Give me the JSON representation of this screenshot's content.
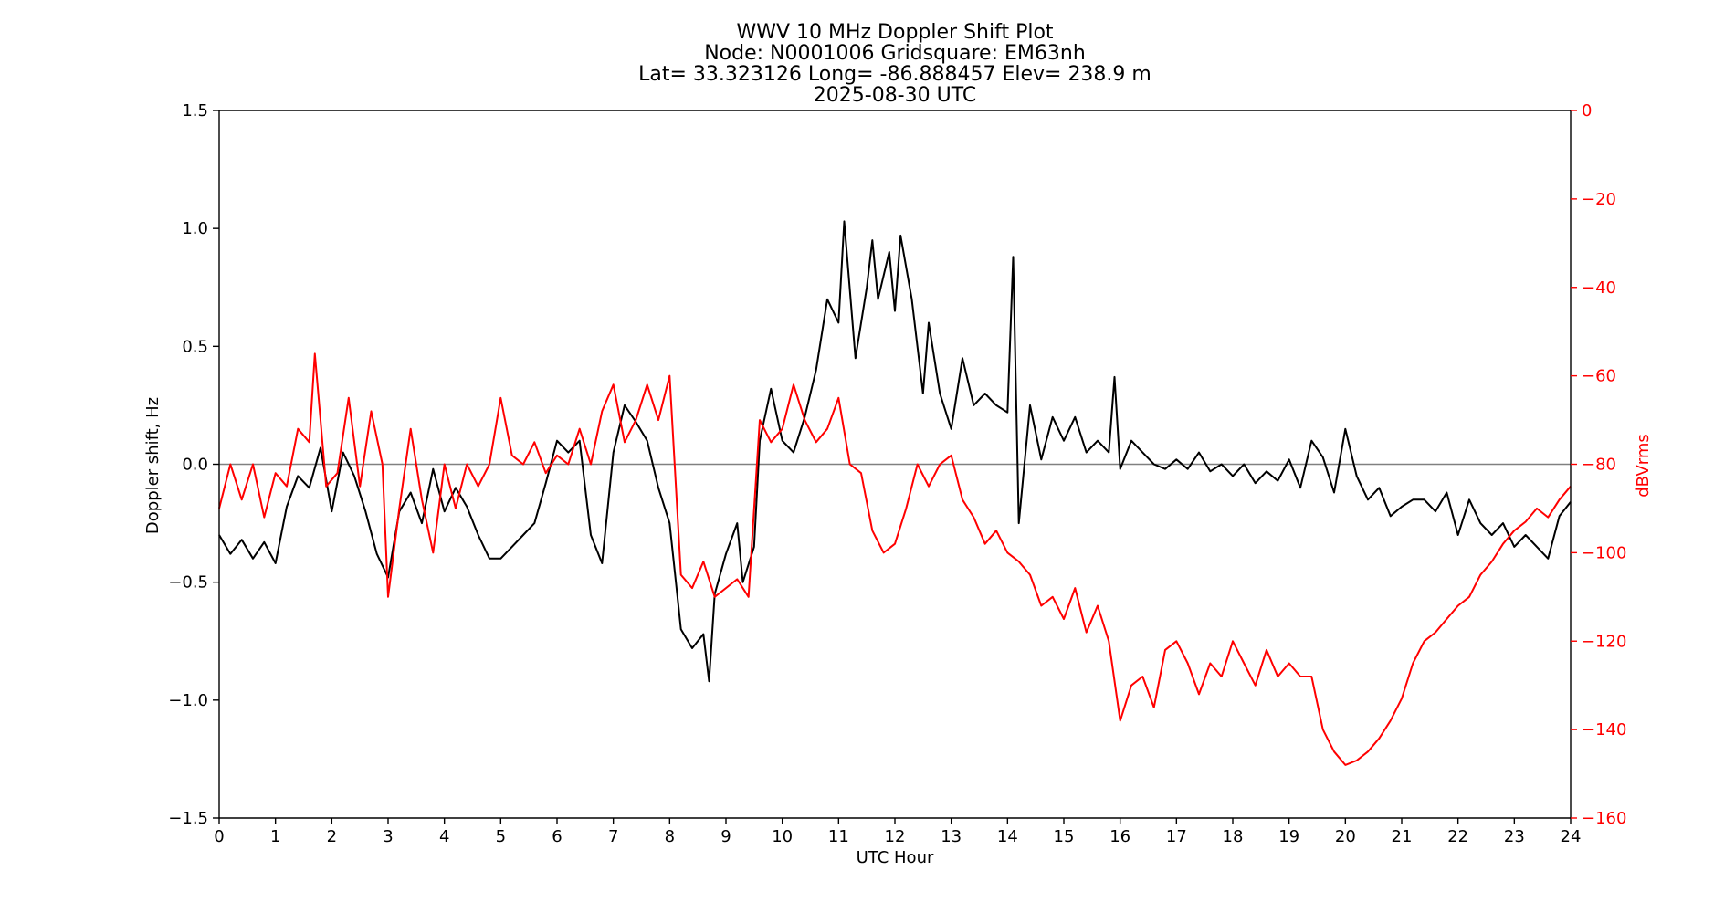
{
  "chart_data": {
    "type": "line",
    "title_lines": [
      "WWV 10 MHz Doppler Shift Plot",
      "Node:  N0001006     Gridsquare:  EM63nh",
      "Lat= 33.323126    Long= -86.888457    Elev= 238.9 m",
      "2025-08-30  UTC"
    ],
    "xlabel": "UTC Hour",
    "ylabel_left": "Doppler shift, Hz",
    "ylabel_right": "dBVrms",
    "xlim": [
      0,
      24
    ],
    "ylim_left": [
      -1.5,
      1.5
    ],
    "ylim_right": [
      -160,
      0
    ],
    "x_ticks": [
      "0",
      "1",
      "2",
      "3",
      "4",
      "5",
      "6",
      "7",
      "8",
      "9",
      "10",
      "11",
      "12",
      "13",
      "14",
      "15",
      "16",
      "17",
      "18",
      "19",
      "20",
      "21",
      "22",
      "23",
      "24"
    ],
    "y_left_ticks": [
      "1.5",
      "1.0",
      "0.5",
      "0.0",
      "−0.5",
      "−1.0",
      "−1.5"
    ],
    "y_right_ticks": [
      "0",
      "−20",
      "−40",
      "−60",
      "−80",
      "−100",
      "−120",
      "−140",
      "−160"
    ],
    "zero_line": 0.0,
    "colors": {
      "doppler": "#000000",
      "power": "#ff0000",
      "zero_line": "#808080",
      "axes": "#000000",
      "right_axis": "#ff0000"
    },
    "series": [
      {
        "axis": "left",
        "points": [
          [
            0.0,
            -0.3
          ],
          [
            0.2,
            -0.38
          ],
          [
            0.4,
            -0.32
          ],
          [
            0.6,
            -0.4
          ],
          [
            0.8,
            -0.33
          ],
          [
            1.0,
            -0.42
          ],
          [
            1.2,
            -0.18
          ],
          [
            1.4,
            -0.05
          ],
          [
            1.6,
            -0.1
          ],
          [
            1.8,
            0.07
          ],
          [
            2.0,
            -0.2
          ],
          [
            2.2,
            0.05
          ],
          [
            2.4,
            -0.05
          ],
          [
            2.6,
            -0.2
          ],
          [
            2.8,
            -0.38
          ],
          [
            3.0,
            -0.48
          ],
          [
            3.2,
            -0.2
          ],
          [
            3.4,
            -0.12
          ],
          [
            3.6,
            -0.25
          ],
          [
            3.8,
            -0.02
          ],
          [
            4.0,
            -0.2
          ],
          [
            4.2,
            -0.1
          ],
          [
            4.4,
            -0.18
          ],
          [
            4.6,
            -0.3
          ],
          [
            4.8,
            -0.4
          ],
          [
            5.0,
            -0.4
          ],
          [
            5.2,
            -0.35
          ],
          [
            5.4,
            -0.3
          ],
          [
            5.6,
            -0.25
          ],
          [
            5.8,
            -0.08
          ],
          [
            6.0,
            0.1
          ],
          [
            6.2,
            0.05
          ],
          [
            6.4,
            0.1
          ],
          [
            6.6,
            -0.3
          ],
          [
            6.8,
            -0.42
          ],
          [
            7.0,
            0.05
          ],
          [
            7.2,
            0.25
          ],
          [
            7.4,
            0.18
          ],
          [
            7.6,
            0.1
          ],
          [
            7.8,
            -0.1
          ],
          [
            8.0,
            -0.25
          ],
          [
            8.2,
            -0.7
          ],
          [
            8.4,
            -0.78
          ],
          [
            8.6,
            -0.72
          ],
          [
            8.7,
            -0.92
          ],
          [
            8.8,
            -0.55
          ],
          [
            9.0,
            -0.38
          ],
          [
            9.2,
            -0.25
          ],
          [
            9.3,
            -0.5
          ],
          [
            9.5,
            -0.35
          ],
          [
            9.6,
            0.1
          ],
          [
            9.8,
            0.32
          ],
          [
            10.0,
            0.1
          ],
          [
            10.2,
            0.05
          ],
          [
            10.4,
            0.2
          ],
          [
            10.6,
            0.4
          ],
          [
            10.8,
            0.7
          ],
          [
            11.0,
            0.6
          ],
          [
            11.1,
            1.03
          ],
          [
            11.3,
            0.45
          ],
          [
            11.5,
            0.75
          ],
          [
            11.6,
            0.95
          ],
          [
            11.7,
            0.7
          ],
          [
            11.9,
            0.9
          ],
          [
            12.0,
            0.65
          ],
          [
            12.1,
            0.97
          ],
          [
            12.3,
            0.7
          ],
          [
            12.5,
            0.3
          ],
          [
            12.6,
            0.6
          ],
          [
            12.8,
            0.3
          ],
          [
            13.0,
            0.15
          ],
          [
            13.2,
            0.45
          ],
          [
            13.4,
            0.25
          ],
          [
            13.6,
            0.3
          ],
          [
            13.8,
            0.25
          ],
          [
            14.0,
            0.22
          ],
          [
            14.1,
            0.88
          ],
          [
            14.2,
            -0.25
          ],
          [
            14.4,
            0.25
          ],
          [
            14.6,
            0.02
          ],
          [
            14.8,
            0.2
          ],
          [
            15.0,
            0.1
          ],
          [
            15.2,
            0.2
          ],
          [
            15.4,
            0.05
          ],
          [
            15.6,
            0.1
          ],
          [
            15.8,
            0.05
          ],
          [
            15.9,
            0.37
          ],
          [
            16.0,
            -0.02
          ],
          [
            16.2,
            0.1
          ],
          [
            16.4,
            0.05
          ],
          [
            16.6,
            0.0
          ],
          [
            16.8,
            -0.02
          ],
          [
            17.0,
            0.02
          ],
          [
            17.2,
            -0.02
          ],
          [
            17.4,
            0.05
          ],
          [
            17.6,
            -0.03
          ],
          [
            17.8,
            0.0
          ],
          [
            18.0,
            -0.05
          ],
          [
            18.2,
            0.0
          ],
          [
            18.4,
            -0.08
          ],
          [
            18.6,
            -0.03
          ],
          [
            18.8,
            -0.07
          ],
          [
            19.0,
            0.02
          ],
          [
            19.2,
            -0.1
          ],
          [
            19.4,
            0.1
          ],
          [
            19.6,
            0.03
          ],
          [
            19.8,
            -0.12
          ],
          [
            20.0,
            0.15
          ],
          [
            20.2,
            -0.05
          ],
          [
            20.4,
            -0.15
          ],
          [
            20.6,
            -0.1
          ],
          [
            20.8,
            -0.22
          ],
          [
            21.0,
            -0.18
          ],
          [
            21.2,
            -0.15
          ],
          [
            21.4,
            -0.15
          ],
          [
            21.6,
            -0.2
          ],
          [
            21.8,
            -0.12
          ],
          [
            22.0,
            -0.3
          ],
          [
            22.2,
            -0.15
          ],
          [
            22.4,
            -0.25
          ],
          [
            22.6,
            -0.3
          ],
          [
            22.8,
            -0.25
          ],
          [
            23.0,
            -0.35
          ],
          [
            23.2,
            -0.3
          ],
          [
            23.4,
            -0.35
          ],
          [
            23.6,
            -0.4
          ],
          [
            23.8,
            -0.22
          ],
          [
            24.0,
            -0.16
          ]
        ]
      },
      {
        "axis": "right",
        "points": [
          [
            0.0,
            -90
          ],
          [
            0.2,
            -80
          ],
          [
            0.4,
            -88
          ],
          [
            0.6,
            -80
          ],
          [
            0.8,
            -92
          ],
          [
            1.0,
            -82
          ],
          [
            1.2,
            -85
          ],
          [
            1.4,
            -72
          ],
          [
            1.6,
            -75
          ],
          [
            1.7,
            -55
          ],
          [
            1.9,
            -85
          ],
          [
            2.1,
            -82
          ],
          [
            2.3,
            -65
          ],
          [
            2.5,
            -85
          ],
          [
            2.7,
            -68
          ],
          [
            2.9,
            -80
          ],
          [
            3.0,
            -110
          ],
          [
            3.2,
            -90
          ],
          [
            3.4,
            -72
          ],
          [
            3.6,
            -88
          ],
          [
            3.8,
            -100
          ],
          [
            4.0,
            -80
          ],
          [
            4.2,
            -90
          ],
          [
            4.4,
            -80
          ],
          [
            4.6,
            -85
          ],
          [
            4.8,
            -80
          ],
          [
            5.0,
            -65
          ],
          [
            5.2,
            -78
          ],
          [
            5.4,
            -80
          ],
          [
            5.6,
            -75
          ],
          [
            5.8,
            -82
          ],
          [
            6.0,
            -78
          ],
          [
            6.2,
            -80
          ],
          [
            6.4,
            -72
          ],
          [
            6.6,
            -80
          ],
          [
            6.8,
            -68
          ],
          [
            7.0,
            -62
          ],
          [
            7.2,
            -75
          ],
          [
            7.4,
            -70
          ],
          [
            7.6,
            -62
          ],
          [
            7.8,
            -70
          ],
          [
            8.0,
            -60
          ],
          [
            8.2,
            -105
          ],
          [
            8.4,
            -108
          ],
          [
            8.6,
            -102
          ],
          [
            8.8,
            -110
          ],
          [
            9.0,
            -108
          ],
          [
            9.2,
            -106
          ],
          [
            9.4,
            -110
          ],
          [
            9.6,
            -70
          ],
          [
            9.8,
            -75
          ],
          [
            10.0,
            -72
          ],
          [
            10.2,
            -62
          ],
          [
            10.4,
            -70
          ],
          [
            10.6,
            -75
          ],
          [
            10.8,
            -72
          ],
          [
            11.0,
            -65
          ],
          [
            11.2,
            -80
          ],
          [
            11.4,
            -82
          ],
          [
            11.6,
            -95
          ],
          [
            11.8,
            -100
          ],
          [
            12.0,
            -98
          ],
          [
            12.2,
            -90
          ],
          [
            12.4,
            -80
          ],
          [
            12.6,
            -85
          ],
          [
            12.8,
            -80
          ],
          [
            13.0,
            -78
          ],
          [
            13.2,
            -88
          ],
          [
            13.4,
            -92
          ],
          [
            13.6,
            -98
          ],
          [
            13.8,
            -95
          ],
          [
            14.0,
            -100
          ],
          [
            14.2,
            -102
          ],
          [
            14.4,
            -105
          ],
          [
            14.6,
            -112
          ],
          [
            14.8,
            -110
          ],
          [
            15.0,
            -115
          ],
          [
            15.2,
            -108
          ],
          [
            15.4,
            -118
          ],
          [
            15.6,
            -112
          ],
          [
            15.8,
            -120
          ],
          [
            16.0,
            -138
          ],
          [
            16.2,
            -130
          ],
          [
            16.4,
            -128
          ],
          [
            16.6,
            -135
          ],
          [
            16.8,
            -122
          ],
          [
            17.0,
            -120
          ],
          [
            17.2,
            -125
          ],
          [
            17.4,
            -132
          ],
          [
            17.6,
            -125
          ],
          [
            17.8,
            -128
          ],
          [
            18.0,
            -120
          ],
          [
            18.2,
            -125
          ],
          [
            18.4,
            -130
          ],
          [
            18.6,
            -122
          ],
          [
            18.8,
            -128
          ],
          [
            19.0,
            -125
          ],
          [
            19.2,
            -128
          ],
          [
            19.4,
            -128
          ],
          [
            19.6,
            -140
          ],
          [
            19.8,
            -145
          ],
          [
            20.0,
            -148
          ],
          [
            20.2,
            -147
          ],
          [
            20.4,
            -145
          ],
          [
            20.6,
            -142
          ],
          [
            20.8,
            -138
          ],
          [
            21.0,
            -133
          ],
          [
            21.2,
            -125
          ],
          [
            21.4,
            -120
          ],
          [
            21.6,
            -118
          ],
          [
            21.8,
            -115
          ],
          [
            22.0,
            -112
          ],
          [
            22.2,
            -110
          ],
          [
            22.4,
            -105
          ],
          [
            22.6,
            -102
          ],
          [
            22.8,
            -98
          ],
          [
            23.0,
            -95
          ],
          [
            23.2,
            -93
          ],
          [
            23.4,
            -90
          ],
          [
            23.6,
            -92
          ],
          [
            23.8,
            -88
          ],
          [
            24.0,
            -85
          ]
        ]
      }
    ]
  }
}
